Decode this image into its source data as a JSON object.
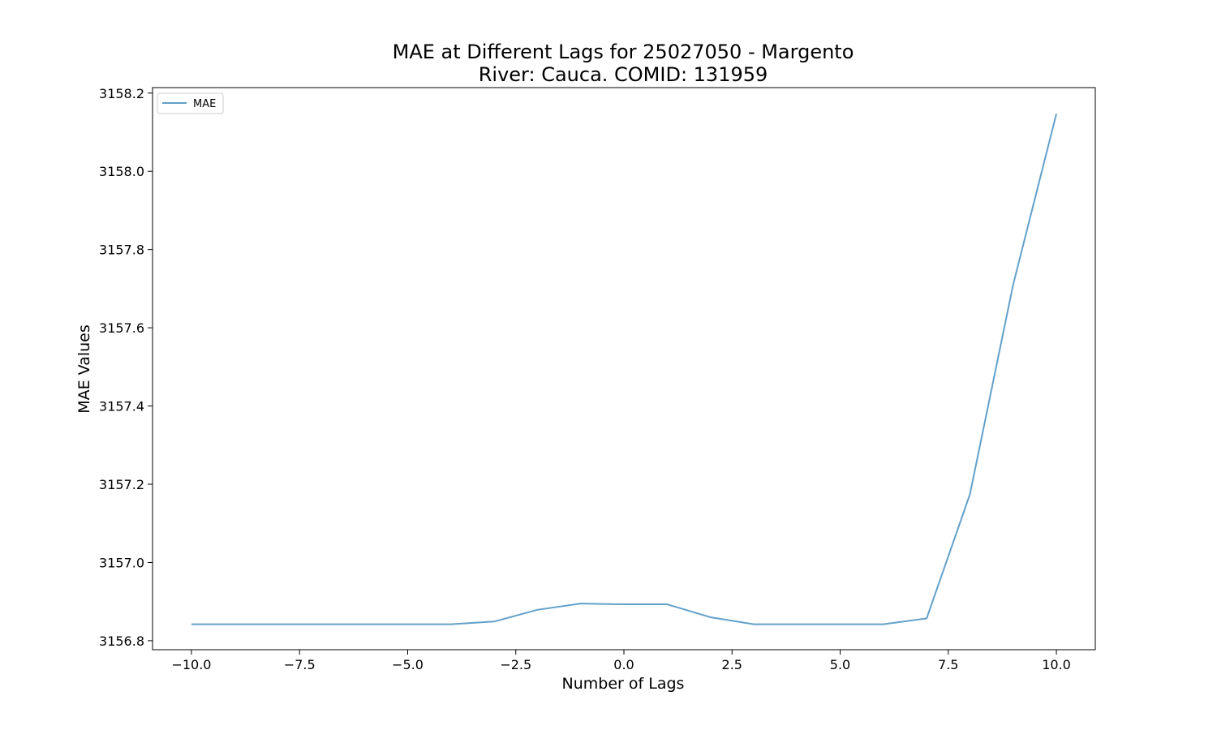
{
  "chart_data": {
    "type": "line",
    "title": "MAE at Different Lags for 25027050 - Margento",
    "subtitle": "River: Cauca. COMID: 131959",
    "xlabel": "Number of Lags",
    "ylabel": "MAE Values",
    "xlim": [
      -10.9,
      10.9
    ],
    "ylim": [
      3156.777,
      3158.214
    ],
    "xticks": [
      -10.0,
      -7.5,
      -5.0,
      -2.5,
      0.0,
      2.5,
      5.0,
      7.5,
      10.0
    ],
    "xtick_labels": [
      "−10.0",
      "−7.5",
      "−5.0",
      "−2.5",
      "0.0",
      "2.5",
      "5.0",
      "7.5",
      "10.0"
    ],
    "yticks": [
      3156.8,
      3157.0,
      3157.2,
      3157.4,
      3157.6,
      3157.8,
      3158.0,
      3158.2
    ],
    "ytick_labels": [
      "3156.8",
      "3157.0",
      "3157.2",
      "3157.4",
      "3157.6",
      "3157.8",
      "3158.0",
      "3158.2"
    ],
    "grid": false,
    "legend_position": "top-left",
    "series": [
      {
        "name": "MAE",
        "color": "#1f77b4",
        "x": [
          -10,
          -9,
          -8,
          -7,
          -6,
          -5,
          -4,
          -3,
          -2,
          -1,
          0,
          1,
          2,
          3,
          4,
          5,
          6,
          7,
          8,
          9,
          10
        ],
        "y": [
          3156.842,
          3156.842,
          3156.842,
          3156.842,
          3156.842,
          3156.842,
          3156.842,
          3156.849,
          3156.879,
          3156.895,
          3156.893,
          3156.893,
          3156.86,
          3156.842,
          3156.842,
          3156.842,
          3156.842,
          3156.857,
          3157.174,
          3157.71,
          3158.147
        ]
      }
    ]
  }
}
